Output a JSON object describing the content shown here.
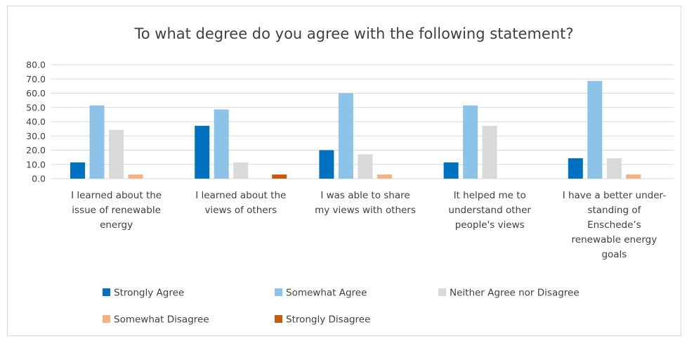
{
  "chart_data": {
    "type": "bar",
    "title": "To what degree do you agree with the following statement?",
    "xlabel": "",
    "ylabel": "",
    "ylim": [
      0,
      80
    ],
    "yticks": [
      "0.0",
      "10.0",
      "20.0",
      "30.0",
      "40.0",
      "50.0",
      "60.0",
      "70.0",
      "80.0"
    ],
    "grid": true,
    "legend_position": "bottom",
    "categories": [
      [
        "I learned about the",
        "issue of renewable",
        "energy"
      ],
      [
        "I learned about the",
        "views of others"
      ],
      [
        "I was able to share",
        "my views with others"
      ],
      [
        "It helped me to",
        "understand other",
        "people's views"
      ],
      [
        "I have a better under-",
        "standing of",
        "Enschede’s",
        "renewable energy",
        "goals"
      ]
    ],
    "series": [
      {
        "name": "Strongly Agree",
        "color": "#0070c0",
        "values": [
          11.4,
          37.1,
          20.0,
          11.4,
          14.3
        ]
      },
      {
        "name": "Somewhat Agree",
        "color": "#8dc3e8",
        "values": [
          51.4,
          48.6,
          60.0,
          51.4,
          68.6
        ]
      },
      {
        "name": "Neither Agree nor Disagree",
        "color": "#d9d9d9",
        "values": [
          34.3,
          11.4,
          17.1,
          37.1,
          14.3
        ]
      },
      {
        "name": "Somewhat Disagree",
        "color": "#f4b183",
        "values": [
          2.9,
          0.0,
          2.9,
          0.0,
          2.9
        ]
      },
      {
        "name": "Strongly Disagree",
        "color": "#c55a11",
        "values": [
          0.0,
          2.9,
          0.0,
          0.0,
          0.0
        ]
      }
    ]
  }
}
